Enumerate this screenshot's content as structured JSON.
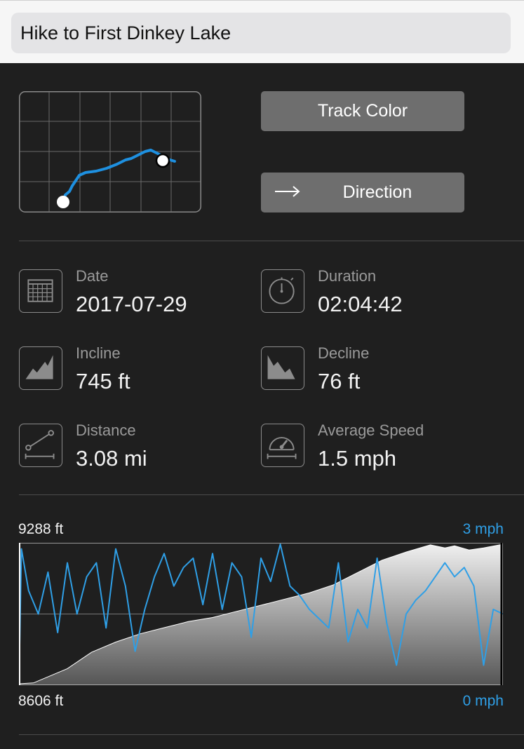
{
  "header": {
    "title": "Hike to First Dinkey Lake"
  },
  "buttons": {
    "track_color": "Track Color",
    "direction": "Direction"
  },
  "stats": {
    "date": {
      "label": "Date",
      "value": "2017-07-29",
      "icon": "calendar-icon"
    },
    "duration": {
      "label": "Duration",
      "value": "02:04:42",
      "icon": "stopwatch-icon"
    },
    "incline": {
      "label": "Incline",
      "value": "745 ft",
      "icon": "incline-icon"
    },
    "decline": {
      "label": "Decline",
      "value": "76 ft",
      "icon": "decline-icon"
    },
    "distance": {
      "label": "Distance",
      "value": "3.08 mi",
      "icon": "distance-icon"
    },
    "avg_speed": {
      "label": "Average Speed",
      "value": "1.5 mph",
      "icon": "speedometer-icon"
    }
  },
  "chart_labels": {
    "elev_max": "9288 ft",
    "elev_min": "8606 ft",
    "speed_max": "3 mph",
    "speed_min": "0 mph"
  },
  "colors": {
    "track": "#1e90e0",
    "speed_line": "#2f9fe6",
    "background": "#1f1f1f",
    "button": "#6e6e6e"
  },
  "chart_data": {
    "type": "area",
    "series": [
      {
        "axis": "left",
        "ylim": [
          8606,
          9288
        ],
        "unit": "ft",
        "x": [
          0,
          0.03,
          0.06,
          0.1,
          0.15,
          0.2,
          0.25,
          0.3,
          0.35,
          0.4,
          0.45,
          0.5,
          0.55,
          0.6,
          0.65,
          0.7,
          0.75,
          0.8,
          0.85,
          0.88,
          0.9,
          0.93,
          0.96,
          1.0
        ],
        "values": [
          8606,
          8610,
          8640,
          8680,
          8760,
          8810,
          8850,
          8880,
          8910,
          8930,
          8960,
          8990,
          9020,
          9050,
          9090,
          9150,
          9210,
          9250,
          9285,
          9270,
          9280,
          9260,
          9270,
          9288
        ]
      },
      {
        "axis": "right",
        "ylim": [
          0,
          3
        ],
        "unit": "mph",
        "x": [
          0,
          0.005,
          0.02,
          0.04,
          0.06,
          0.08,
          0.1,
          0.12,
          0.14,
          0.16,
          0.18,
          0.2,
          0.22,
          0.24,
          0.26,
          0.28,
          0.3,
          0.32,
          0.34,
          0.36,
          0.38,
          0.4,
          0.42,
          0.44,
          0.46,
          0.48,
          0.5,
          0.52,
          0.54,
          0.56,
          0.58,
          0.6,
          0.62,
          0.64,
          0.66,
          0.68,
          0.7,
          0.72,
          0.74,
          0.76,
          0.78,
          0.8,
          0.82,
          0.84,
          0.86,
          0.88,
          0.9,
          0.92,
          0.94,
          0.96,
          0.98,
          1.0
        ],
        "values": [
          0,
          2.9,
          2.0,
          1.5,
          2.4,
          1.1,
          2.6,
          1.5,
          2.3,
          2.6,
          1.2,
          2.9,
          2.1,
          0.7,
          1.6,
          2.3,
          2.8,
          2.1,
          2.5,
          2.7,
          1.7,
          2.8,
          1.6,
          2.6,
          2.3,
          1.0,
          2.7,
          2.2,
          3.0,
          2.1,
          1.9,
          1.6,
          1.4,
          1.2,
          2.6,
          0.9,
          1.6,
          1.2,
          2.7,
          1.3,
          0.4,
          1.5,
          1.8,
          2.0,
          2.3,
          2.6,
          2.3,
          2.5,
          2.1,
          0.4,
          1.6,
          1.5
        ]
      }
    ],
    "xlabel": "",
    "ylabel": "",
    "grid": false
  }
}
